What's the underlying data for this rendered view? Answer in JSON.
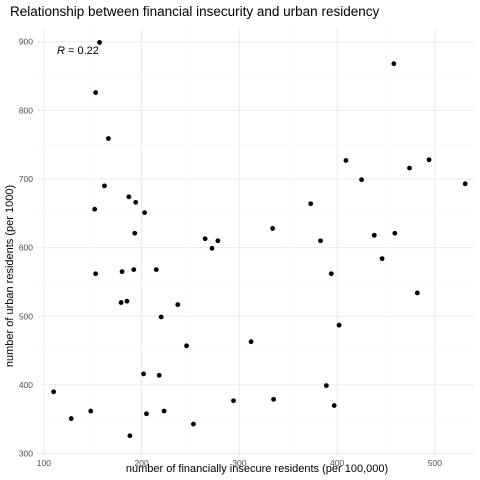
{
  "chart_data": {
    "type": "scatter",
    "title": "Relationship between financial insecurity and urban residency",
    "xlabel": "number of financially insecure residents (per 100,000)",
    "ylabel": "number of urban residents (per 1000)",
    "annotation": {
      "label": "R",
      "text": " = 0.22"
    },
    "xlim": [
      93,
      540
    ],
    "ylim": [
      295,
      920
    ],
    "xticks": [
      100,
      200,
      300,
      400,
      500
    ],
    "yticks": [
      300,
      400,
      500,
      600,
      700,
      800,
      900
    ],
    "xminor": [
      150,
      250,
      350,
      450
    ],
    "yminor": [
      350,
      450,
      550,
      650,
      750,
      850
    ],
    "grid": true,
    "points": [
      {
        "x": 110,
        "y": 390
      },
      {
        "x": 128,
        "y": 351
      },
      {
        "x": 148,
        "y": 362
      },
      {
        "x": 152,
        "y": 656
      },
      {
        "x": 153,
        "y": 562
      },
      {
        "x": 153,
        "y": 826
      },
      {
        "x": 157,
        "y": 899
      },
      {
        "x": 162,
        "y": 690
      },
      {
        "x": 166,
        "y": 759
      },
      {
        "x": 179,
        "y": 520
      },
      {
        "x": 180,
        "y": 565
      },
      {
        "x": 185,
        "y": 522
      },
      {
        "x": 187,
        "y": 674
      },
      {
        "x": 188,
        "y": 326
      },
      {
        "x": 192,
        "y": 568
      },
      {
        "x": 193,
        "y": 621
      },
      {
        "x": 194,
        "y": 666
      },
      {
        "x": 202,
        "y": 416
      },
      {
        "x": 203,
        "y": 651
      },
      {
        "x": 205,
        "y": 358
      },
      {
        "x": 215,
        "y": 568
      },
      {
        "x": 218,
        "y": 414
      },
      {
        "x": 220,
        "y": 499
      },
      {
        "x": 223,
        "y": 362
      },
      {
        "x": 237,
        "y": 517
      },
      {
        "x": 246,
        "y": 457
      },
      {
        "x": 253,
        "y": 343
      },
      {
        "x": 265,
        "y": 613
      },
      {
        "x": 272,
        "y": 599
      },
      {
        "x": 278,
        "y": 610
      },
      {
        "x": 294,
        "y": 377
      },
      {
        "x": 312,
        "y": 463
      },
      {
        "x": 334,
        "y": 628
      },
      {
        "x": 335,
        "y": 379
      },
      {
        "x": 373,
        "y": 664
      },
      {
        "x": 383,
        "y": 610
      },
      {
        "x": 389,
        "y": 399
      },
      {
        "x": 394,
        "y": 562
      },
      {
        "x": 397,
        "y": 370
      },
      {
        "x": 402,
        "y": 487
      },
      {
        "x": 409,
        "y": 727
      },
      {
        "x": 425,
        "y": 699
      },
      {
        "x": 438,
        "y": 618
      },
      {
        "x": 446,
        "y": 584
      },
      {
        "x": 458,
        "y": 868
      },
      {
        "x": 459,
        "y": 621
      },
      {
        "x": 474,
        "y": 716
      },
      {
        "x": 482,
        "y": 534
      },
      {
        "x": 494,
        "y": 728
      },
      {
        "x": 531,
        "y": 693
      }
    ]
  }
}
